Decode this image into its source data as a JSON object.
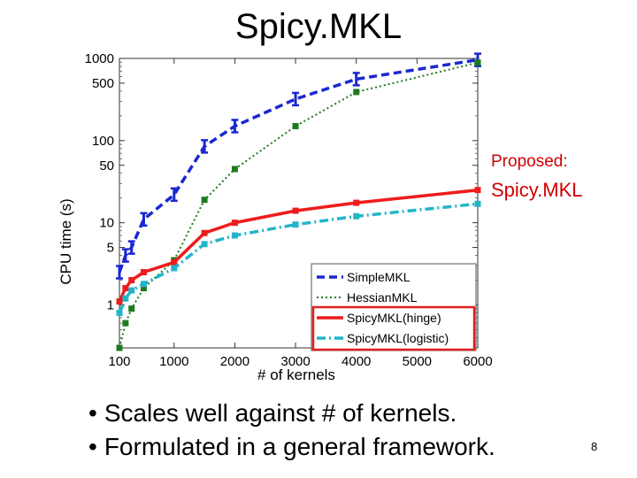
{
  "slide": {
    "title": "Spicy.MKL",
    "proposed_label": "Proposed:",
    "proposed_name": "Spicy.MKL",
    "bullets": [
      "Scales well against # of kernels.",
      "Formulated in a general framework."
    ],
    "page_number": "8"
  },
  "chart_data": {
    "type": "line",
    "title": "",
    "xlabel": "# of kernels",
    "ylabel": "CPU time (s)",
    "xscale": "linear",
    "yscale": "log",
    "xlim": [
      100,
      6000
    ],
    "ylim": [
      0.3,
      1000
    ],
    "xticks": [
      100,
      1000,
      2000,
      3000,
      4000,
      5000,
      6000
    ],
    "xtick_labels": [
      "100",
      "1000",
      "2000",
      "3000",
      "4000",
      "5000",
      "6000"
    ],
    "yticks": [
      1,
      5,
      10,
      50,
      100,
      500,
      1000
    ],
    "ytick_labels": [
      "1",
      "5",
      "10",
      "50",
      "100",
      "500",
      "1000"
    ],
    "grid": false,
    "legend_position": "bottom-right",
    "series": [
      {
        "name": "SimpleMKL",
        "color": "#1a28d0",
        "dash": "dashed",
        "marker": "errorbar",
        "x": [
          100,
          200,
          300,
          500,
          1000,
          1500,
          2000,
          3000,
          4000,
          6000
        ],
        "y": [
          2.5,
          4,
          5,
          11,
          22,
          85,
          150,
          320,
          560,
          960
        ]
      },
      {
        "name": "HessianMKL",
        "color": "#1e7a1e",
        "dash": "dotted",
        "marker": "square",
        "x": [
          100,
          200,
          300,
          500,
          1000,
          1500,
          2000,
          3000,
          4000,
          6000
        ],
        "y": [
          0.3,
          0.6,
          0.9,
          1.6,
          3.5,
          19,
          45,
          150,
          390,
          890
        ]
      },
      {
        "name": "SpicyMKL(hinge)",
        "color": "#ee1c1c",
        "dash": "solid",
        "marker": "square",
        "x": [
          100,
          200,
          300,
          500,
          1000,
          1500,
          2000,
          3000,
          4000,
          6000
        ],
        "y": [
          1.1,
          1.6,
          2,
          2.5,
          3.3,
          7.5,
          10,
          14,
          17.5,
          25
        ]
      },
      {
        "name": "SpicyMKL(logistic)",
        "color": "#22b5c8",
        "dash": "dashdot",
        "marker": "square",
        "x": [
          100,
          200,
          300,
          500,
          1000,
          1500,
          2000,
          3000,
          4000,
          6000
        ],
        "y": [
          0.8,
          1.2,
          1.5,
          1.8,
          2.8,
          5.5,
          7,
          9.5,
          12,
          17
        ]
      }
    ],
    "highlighted_legend_entries": [
      "SpicyMKL(hinge)",
      "SpicyMKL(logistic)"
    ],
    "highlight_color": "#e02020"
  }
}
